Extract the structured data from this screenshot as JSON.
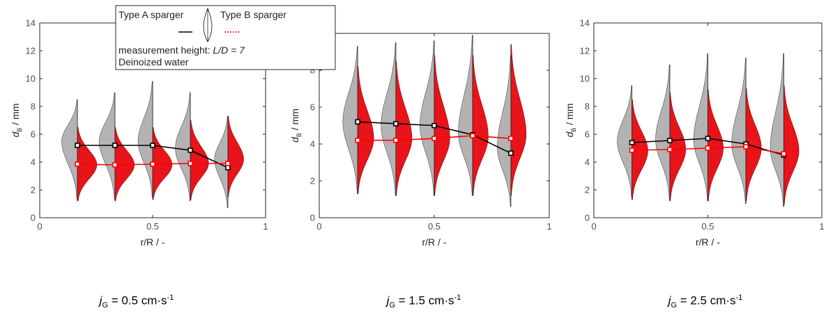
{
  "colors": {
    "typeA": "#000000",
    "typeA_fill": "#b3b3b3",
    "typeB": "#ff0000",
    "typeB_fill": "#e8141a"
  },
  "legend": {
    "typeA": "Type A sparger",
    "typeB": "Type B sparger",
    "height_label": "measurement height: ",
    "height_value": "L/D = 7",
    "water": "Deinoized water"
  },
  "chart_data": [
    {
      "type": "violin",
      "caption_var": "j",
      "caption_sub": "G",
      "caption_value": " = 0.5 cm·s",
      "caption_sup": "-1",
      "xlabel": "r/R / -",
      "ylabel": "d / mm",
      "ylabel_sub": "B",
      "xlim": [
        0,
        1
      ],
      "ylim": [
        0,
        14
      ],
      "xticks": [
        0,
        0.5,
        1
      ],
      "xtick_labels": [
        "0",
        "0.5",
        "1"
      ],
      "yticks": [
        0,
        2,
        4,
        6,
        8,
        10,
        12,
        14
      ],
      "ytick_labels": [
        "0",
        "2",
        "4",
        "6",
        "8",
        "10",
        "12",
        "14"
      ],
      "positions": [
        0.167,
        0.333,
        0.5,
        0.667,
        0.833
      ],
      "series": [
        {
          "name": "Type A sparger",
          "values": [
            5.2,
            5.2,
            5.2,
            4.85,
            3.6
          ],
          "violins": [
            {
              "min": 1.3,
              "max": 8.5,
              "mode": 5.5,
              "peak": 0.065
            },
            {
              "min": 1.3,
              "max": 9.0,
              "mode": 5.5,
              "peak": 0.065
            },
            {
              "min": 1.5,
              "max": 9.8,
              "mode": 5.5,
              "peak": 0.06
            },
            {
              "min": 1.2,
              "max": 9.0,
              "mode": 5.0,
              "peak": 0.062
            },
            {
              "min": 0.7,
              "max": 7.3,
              "mode": 4.2,
              "peak": 0.055
            }
          ]
        },
        {
          "name": "Type B sparger",
          "values": [
            3.85,
            3.8,
            3.85,
            3.9,
            3.9
          ],
          "violins": [
            {
              "min": 1.2,
              "max": 6.5,
              "mode": 3.8,
              "peak": 0.08
            },
            {
              "min": 1.2,
              "max": 6.5,
              "mode": 3.8,
              "peak": 0.08
            },
            {
              "min": 1.3,
              "max": 6.5,
              "mode": 3.8,
              "peak": 0.08
            },
            {
              "min": 1.3,
              "max": 7.0,
              "mode": 3.9,
              "peak": 0.075
            },
            {
              "min": 1.5,
              "max": 7.3,
              "mode": 4.2,
              "peak": 0.065
            }
          ]
        }
      ]
    },
    {
      "type": "violin",
      "caption_var": "j",
      "caption_sub": "G",
      "caption_value": " = 1.5 cm·s",
      "caption_sup": "-1",
      "xlabel": "r/R / -",
      "ylabel": "d / mm",
      "ylabel_sub": "B",
      "xlim": [
        0,
        1
      ],
      "ylim": [
        0,
        10
      ],
      "xticks": [
        0,
        0.5,
        1
      ],
      "xtick_labels": [
        "0",
        "0.5",
        "1"
      ],
      "yticks": [
        0,
        2,
        4,
        6,
        8
      ],
      "ytick_labels": [
        "0",
        "2",
        "4",
        "6",
        "8"
      ],
      "positions": [
        0.167,
        0.333,
        0.5,
        0.667,
        0.833
      ],
      "series": [
        {
          "name": "Type A sparger",
          "values": [
            5.2,
            5.1,
            5.0,
            4.5,
            3.5
          ],
          "violins": [
            {
              "min": 1.3,
              "max": 9.3,
              "mode": 5.2,
              "peak": 0.06
            },
            {
              "min": 1.2,
              "max": 9.5,
              "mode": 5.0,
              "peak": 0.06
            },
            {
              "min": 1.2,
              "max": 9.6,
              "mode": 5.0,
              "peak": 0.058
            },
            {
              "min": 1.2,
              "max": 9.9,
              "mode": 4.6,
              "peak": 0.058
            },
            {
              "min": 0.6,
              "max": 8.8,
              "mode": 3.8,
              "peak": 0.055
            }
          ]
        },
        {
          "name": "Type B sparger",
          "values": [
            4.2,
            4.2,
            4.3,
            4.45,
            4.3
          ],
          "violins": [
            {
              "min": 1.3,
              "max": 8.2,
              "mode": 4.3,
              "peak": 0.065
            },
            {
              "min": 1.2,
              "max": 8.5,
              "mode": 4.3,
              "peak": 0.065
            },
            {
              "min": 1.2,
              "max": 8.8,
              "mode": 4.3,
              "peak": 0.063
            },
            {
              "min": 1.2,
              "max": 8.8,
              "mode": 4.4,
              "peak": 0.063
            },
            {
              "min": 1.2,
              "max": 9.4,
              "mode": 4.5,
              "peak": 0.062
            }
          ]
        }
      ]
    },
    {
      "type": "violin",
      "caption_var": "j",
      "caption_sub": "G",
      "caption_value": " = 2.5 cm·s",
      "caption_sup": "-1",
      "xlabel": "r/R / -",
      "ylabel": "d / mm",
      "ylabel_sub": "B",
      "xlim": [
        0,
        1
      ],
      "ylim": [
        0,
        14
      ],
      "xticks": [
        0,
        0.5,
        1
      ],
      "xtick_labels": [
        "0",
        "0.5",
        "1"
      ],
      "yticks": [
        0,
        2,
        4,
        6,
        8,
        10,
        12,
        14
      ],
      "ytick_labels": [
        "0",
        "2",
        "4",
        "6",
        "8",
        "10",
        "12",
        "14"
      ],
      "positions": [
        0.167,
        0.333,
        0.5,
        0.667,
        0.833
      ],
      "series": [
        {
          "name": "Type A sparger",
          "values": [
            5.4,
            5.55,
            5.7,
            5.3,
            4.5
          ],
          "violins": [
            {
              "min": 1.5,
              "max": 9.5,
              "mode": 5.5,
              "peak": 0.06
            },
            {
              "min": 1.3,
              "max": 11.0,
              "mode": 5.6,
              "peak": 0.058
            },
            {
              "min": 1.2,
              "max": 11.8,
              "mode": 5.6,
              "peak": 0.058
            },
            {
              "min": 1.0,
              "max": 11.5,
              "mode": 5.3,
              "peak": 0.058
            },
            {
              "min": 0.8,
              "max": 11.8,
              "mode": 5.0,
              "peak": 0.055
            }
          ]
        },
        {
          "name": "Type B sparger",
          "values": [
            4.85,
            4.9,
            5.0,
            5.1,
            4.6
          ],
          "violins": [
            {
              "min": 1.3,
              "max": 8.5,
              "mode": 4.8,
              "peak": 0.065
            },
            {
              "min": 1.2,
              "max": 9.0,
              "mode": 4.9,
              "peak": 0.065
            },
            {
              "min": 1.2,
              "max": 9.2,
              "mode": 5.0,
              "peak": 0.063
            },
            {
              "min": 1.2,
              "max": 9.3,
              "mode": 5.0,
              "peak": 0.063
            },
            {
              "min": 0.9,
              "max": 9.5,
              "mode": 4.8,
              "peak": 0.062
            }
          ]
        }
      ]
    }
  ]
}
